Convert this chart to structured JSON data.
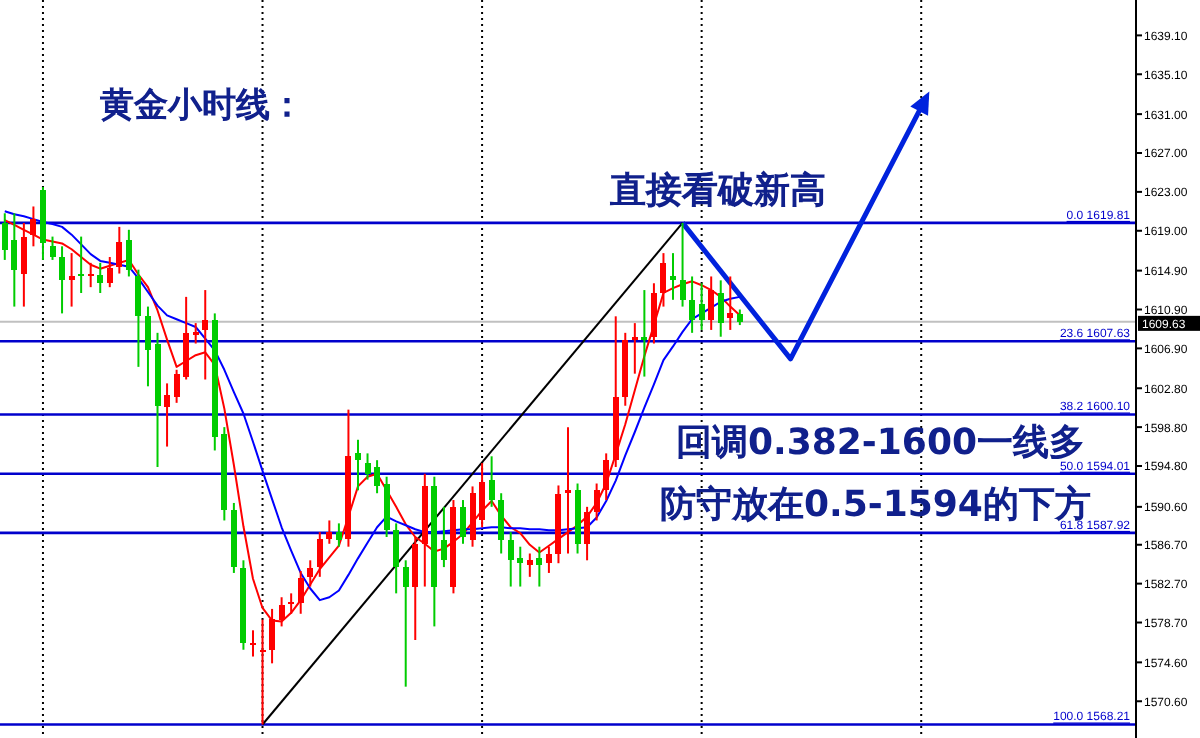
{
  "chart_data": {
    "type": "candlestick",
    "title": "黄金小时线：",
    "annotations": [
      "直接看破新高",
      "回调0.382-1600一线多",
      "防守放在0.5-1594的下方"
    ],
    "categories": [
      null,
      null,
      null,
      null,
      null,
      null,
      null,
      null,
      null,
      null,
      null,
      null,
      null,
      null,
      null,
      null,
      null,
      null,
      null,
      null,
      null,
      null,
      null,
      null,
      null,
      null,
      null,
      null,
      null,
      null,
      null,
      null,
      null,
      null,
      null,
      null,
      null,
      null,
      null,
      null,
      null,
      null,
      null,
      null,
      null,
      null,
      null,
      null,
      null,
      null,
      null,
      null,
      null,
      null,
      null,
      null,
      null,
      null,
      null,
      null,
      null,
      null,
      null,
      null,
      null,
      null,
      null,
      null,
      null,
      null,
      null,
      null,
      null,
      null,
      null,
      null,
      null,
      null,
      null,
      null,
      null,
      null,
      null,
      null,
      null,
      null,
      null,
      null,
      null,
      null,
      null,
      null,
      null,
      null,
      null,
      null,
      null,
      null,
      null,
      null,
      null,
      null,
      null,
      null,
      null,
      null,
      null,
      null,
      null,
      null,
      null,
      null,
      null,
      null,
      null,
      null,
      null,
      null,
      null
    ],
    "ohlc": [
      [
        1619.8,
        1620.8,
        1616.0,
        1617.0
      ],
      [
        1618.1,
        1620.8,
        1611.2,
        1615.0
      ],
      [
        1614.6,
        1619.8,
        1611.2,
        1618.4
      ],
      [
        1618.6,
        1621.5,
        1617.4,
        1620.2
      ],
      [
        1623.2,
        1623.5,
        1616.0,
        1617.7
      ],
      [
        1617.4,
        1618.4,
        1616.0,
        1616.3
      ],
      [
        1616.3,
        1617.4,
        1610.5,
        1613.9
      ],
      [
        1613.9,
        1616.7,
        1611.2,
        1614.3
      ],
      [
        1614.6,
        1618.4,
        1612.6,
        1614.3
      ],
      [
        1614.4,
        1615.7,
        1613.2,
        1614.6
      ],
      [
        1614.5,
        1615.7,
        1612.6,
        1613.6
      ],
      [
        1613.6,
        1616.3,
        1613.2,
        1615.2
      ],
      [
        1615.3,
        1619.4,
        1614.6,
        1617.8
      ],
      [
        1618.1,
        1619.1,
        1614.3,
        1615.0
      ],
      [
        1614.3,
        1615.0,
        1605.0,
        1610.2
      ],
      [
        1610.2,
        1611.2,
        1603.0,
        1606.7
      ],
      [
        1607.4,
        1608.5,
        1594.7,
        1601.0
      ],
      [
        1600.9,
        1603.3,
        1596.8,
        1602.1
      ],
      [
        1601.9,
        1604.7,
        1601.3,
        1604.3
      ],
      [
        1604.0,
        1612.2,
        1603.7,
        1608.5
      ],
      [
        1608.3,
        1609.5,
        1607.4,
        1608.6
      ],
      [
        1608.8,
        1612.9,
        1603.7,
        1609.8
      ],
      [
        1609.8,
        1610.5,
        1596.4,
        1597.8
      ],
      [
        1598.1,
        1598.8,
        1589.2,
        1590.3
      ],
      [
        1590.3,
        1591.0,
        1583.8,
        1584.4
      ],
      [
        1584.3,
        1585.1,
        1575.9,
        1576.6
      ],
      [
        1576.4,
        1577.9,
        1575.2,
        1576.6
      ],
      [
        1575.7,
        1579.0,
        1568.21,
        1575.9
      ],
      [
        1575.9,
        1580.1,
        1574.5,
        1579.1
      ],
      [
        1579.0,
        1581.3,
        1578.3,
        1580.5
      ],
      [
        1580.6,
        1581.7,
        1579.6,
        1580.8
      ],
      [
        1580.7,
        1584.0,
        1579.6,
        1583.3
      ],
      [
        1583.4,
        1585.1,
        1582.4,
        1584.3
      ],
      [
        1584.4,
        1588.0,
        1583.4,
        1587.3
      ],
      [
        1587.3,
        1589.2,
        1586.8,
        1588.0
      ],
      [
        1588.0,
        1588.9,
        1586.5,
        1587.2
      ],
      [
        1587.3,
        1600.6,
        1586.5,
        1595.8
      ],
      [
        1596.1,
        1597.5,
        1592.3,
        1595.4
      ],
      [
        1595.1,
        1596.1,
        1593.4,
        1594.0
      ],
      [
        1594.7,
        1595.4,
        1592.0,
        1592.7
      ],
      [
        1593.0,
        1593.7,
        1587.5,
        1588.2
      ],
      [
        1588.2,
        1588.9,
        1581.7,
        1584.4
      ],
      [
        1584.4,
        1585.1,
        1572.1,
        1582.4
      ],
      [
        1582.4,
        1587.5,
        1576.9,
        1586.8
      ],
      [
        1586.8,
        1594.0,
        1582.4,
        1592.7
      ],
      [
        1592.7,
        1593.7,
        1578.3,
        1582.4
      ],
      [
        1587.2,
        1590.6,
        1584.4,
        1585.1
      ],
      [
        1582.4,
        1591.3,
        1581.7,
        1590.6
      ],
      [
        1590.6,
        1591.3,
        1586.8,
        1587.5
      ],
      [
        1587.2,
        1592.7,
        1586.5,
        1592.0
      ],
      [
        1589.2,
        1595.1,
        1588.5,
        1593.2
      ],
      [
        1593.4,
        1595.8,
        1590.6,
        1591.3
      ],
      [
        1591.3,
        1592.0,
        1585.8,
        1587.2
      ],
      [
        1587.2,
        1588.0,
        1582.4,
        1585.1
      ],
      [
        1585.3,
        1586.5,
        1582.4,
        1584.8
      ],
      [
        1584.6,
        1585.8,
        1583.4,
        1585.1
      ],
      [
        1585.3,
        1586.5,
        1582.4,
        1584.6
      ],
      [
        1584.8,
        1586.5,
        1583.8,
        1585.8
      ],
      [
        1585.8,
        1592.8,
        1584.8,
        1591.9
      ],
      [
        1592.0,
        1598.8,
        1585.8,
        1592.3
      ],
      [
        1592.3,
        1593.0,
        1585.8,
        1586.8
      ],
      [
        1586.8,
        1590.6,
        1585.1,
        1590.1
      ],
      [
        1590.1,
        1593.0,
        1589.2,
        1592.3
      ],
      [
        1592.3,
        1596.1,
        1591.3,
        1595.4
      ],
      [
        1595.4,
        1610.2,
        1594.7,
        1601.9
      ],
      [
        1601.9,
        1608.5,
        1601.0,
        1607.8
      ],
      [
        1607.8,
        1609.5,
        1604.3,
        1608.1
      ],
      [
        1608.1,
        1612.9,
        1604.0,
        1607.8
      ],
      [
        1608.1,
        1613.6,
        1607.4,
        1612.6
      ],
      [
        1612.6,
        1616.7,
        1611.2,
        1615.7
      ],
      [
        1614.3,
        1616.7,
        1611.9,
        1613.9
      ],
      [
        1613.9,
        1619.81,
        1611.2,
        1611.9
      ],
      [
        1611.9,
        1614.3,
        1608.5,
        1609.8
      ],
      [
        1611.5,
        1613.6,
        1608.8,
        1609.8
      ],
      [
        1609.8,
        1614.3,
        1608.8,
        1612.9
      ],
      [
        1612.6,
        1613.9,
        1608.1,
        1609.5
      ],
      [
        1610.0,
        1614.3,
        1608.8,
        1610.5
      ],
      [
        1610.4,
        1610.9,
        1609.3,
        1609.63
      ],
      null,
      null,
      null,
      null,
      null,
      null,
      null,
      null,
      null,
      null,
      null,
      null,
      null,
      null,
      null,
      null,
      null,
      null,
      null,
      null,
      null,
      null,
      null,
      null,
      null,
      null,
      null,
      null,
      null,
      null,
      null,
      null,
      null,
      null,
      null,
      null,
      null,
      null,
      null,
      null,
      null
    ],
    "colors": [
      "#00cc00",
      "#00cc00",
      "#ff0000",
      "#ff0000",
      "#00cc00",
      "#00cc00",
      "#00cc00",
      "#ff0000",
      "#00cc00",
      "#ff0000",
      "#00cc00",
      "#ff0000",
      "#ff0000",
      "#00cc00",
      "#00cc00",
      "#00cc00",
      "#00cc00",
      "#ff0000",
      "#ff0000",
      "#ff0000",
      "#ff0000",
      "#ff0000",
      "#00cc00",
      "#00cc00",
      "#00cc00",
      "#00cc00",
      "#ff0000",
      "#ff0000",
      "#ff0000",
      "#ff0000",
      "#ff0000",
      "#ff0000",
      "#ff0000",
      "#ff0000",
      "#ff0000",
      "#00cc00",
      "#ff0000",
      "#00cc00",
      "#00cc00",
      "#00cc00",
      "#00cc00",
      "#00cc00",
      "#00cc00",
      "#ff0000",
      "#ff0000",
      "#00cc00",
      "#00cc00",
      "#ff0000",
      "#00cc00",
      "#ff0000",
      "#ff0000",
      "#00cc00",
      "#00cc00",
      "#00cc00",
      "#00cc00",
      "#ff0000",
      "#00cc00",
      "#ff0000",
      "#ff0000",
      "#ff0000",
      "#00cc00",
      "#ff0000",
      "#ff0000",
      "#ff0000",
      "#ff0000",
      "#ff0000",
      "#ff0000",
      "#00cc00",
      "#ff0000",
      "#ff0000",
      "#00cc00",
      "#00cc00",
      "#00cc00",
      "#00cc00",
      "#ff0000",
      "#00cc00",
      "#ff0000",
      "#00cc00",
      null,
      null,
      null,
      null,
      null,
      null,
      null,
      null,
      null,
      null,
      null,
      null,
      null,
      null,
      null,
      null,
      null,
      null,
      null,
      null,
      null,
      null,
      null,
      null,
      null,
      null,
      null,
      null,
      null,
      null,
      null,
      null,
      null,
      null,
      null,
      null,
      null,
      null,
      null,
      null,
      null
    ],
    "series": [
      {
        "type": "line",
        "color": "#ff0000",
        "values": [
          1620.1,
          1619.6,
          1619.1,
          1618.6,
          1618.1,
          1617.9,
          1617.7,
          1617.1,
          1616.3,
          1615.5,
          1615.1,
          1615.4,
          1615.7,
          1616.0,
          1614.5,
          1613.2,
          1610.8,
          1607.8,
          1605.0,
          1605.6,
          1606.2,
          1606.5,
          1605.2,
          1600.7,
          1594.9,
          1588.6,
          1583.2,
          1580.2,
          1578.9,
          1578.8,
          1579.7,
          1581.0,
          1582.6,
          1584.2,
          1585.4,
          1586.6,
          1589.6,
          1592.7,
          1593.7,
          1594.0,
          1592.3,
          1590.6,
          1588.8,
          1587.5,
          1586.8,
          1586.0,
          1586.3,
          1587.0,
          1587.8,
          1589.0,
          1590.2,
          1591.2,
          1589.7,
          1588.5,
          1587.9,
          1586.7,
          1585.9,
          1586.6,
          1587.3,
          1588.0,
          1588.7,
          1589.6,
          1591.0,
          1593.0,
          1596.0,
          1599.1,
          1602.6,
          1606.1,
          1609.3,
          1612.6,
          1613.1,
          1613.5,
          1613.8,
          1613.4,
          1612.9,
          1612.2,
          1611.2,
          1610.3,
          null,
          null,
          null,
          null,
          null,
          null,
          null,
          null,
          null,
          null,
          null,
          null,
          null,
          null,
          null,
          null,
          null,
          null,
          null,
          null,
          null,
          null,
          null,
          null,
          null,
          null,
          null,
          null,
          null,
          null,
          null,
          null,
          null,
          null,
          null,
          null,
          null,
          null,
          null,
          null,
          null
        ]
      },
      {
        "type": "line",
        "color": "#0000ff",
        "values": [
          1621.0,
          1620.7,
          1620.5,
          1620.2,
          1619.9,
          1619.7,
          1619.4,
          1618.6,
          1617.6,
          1616.6,
          1615.9,
          1615.7,
          1615.5,
          1615.3,
          1614.1,
          1612.7,
          1611.3,
          1610.3,
          1609.9,
          1609.5,
          1609.1,
          1607.9,
          1606.7,
          1604.7,
          1602.4,
          1600.2,
          1597.3,
          1594.3,
          1591.4,
          1588.5,
          1586.1,
          1583.8,
          1582.2,
          1581.0,
          1581.3,
          1582.0,
          1583.6,
          1585.3,
          1586.9,
          1588.5,
          1589.6,
          1589.1,
          1588.7,
          1588.3,
          1588.0,
          1588.0,
          1588.1,
          1588.2,
          1588.3,
          1588.3,
          1588.4,
          1588.5,
          1588.5,
          1588.4,
          1588.4,
          1588.3,
          1588.3,
          1588.2,
          1588.2,
          1588.3,
          1588.4,
          1588.5,
          1589.5,
          1591.2,
          1593.3,
          1595.9,
          1598.3,
          1600.8,
          1603.2,
          1605.7,
          1607.1,
          1608.6,
          1609.9,
          1610.5,
          1611.1,
          1611.7,
          1612.0,
          1612.2,
          null,
          null,
          null,
          null,
          null,
          null,
          null,
          null,
          null,
          null,
          null,
          null,
          null,
          null,
          null,
          null,
          null,
          null,
          null,
          null,
          null,
          null,
          null,
          null,
          null,
          null,
          null,
          null,
          null,
          null,
          null,
          null,
          null,
          null,
          null,
          null,
          null,
          null,
          null,
          null,
          null
        ]
      }
    ],
    "ref_lines": [
      {
        "axis": "y",
        "value": 1619.81,
        "label": "0.0 1619.81",
        "color": "#0000cc"
      },
      {
        "axis": "y",
        "value": 1607.63,
        "label": "23.6 1607.63",
        "color": "#0000cc"
      },
      {
        "axis": "y",
        "value": 1600.1,
        "label": "38.2 1600.10",
        "color": "#0000cc"
      },
      {
        "axis": "y",
        "value": 1594.01,
        "label": "50.0 1594.01",
        "color": "#0000cc"
      },
      {
        "axis": "y",
        "value": 1587.92,
        "label": "61.8 1587.92",
        "color": "#0000cc"
      },
      {
        "axis": "y",
        "value": 1568.21,
        "label": "100.0 1568.21",
        "color": "#0000cc"
      },
      {
        "axis": "y",
        "value": 1609.63,
        "label": "1609.63",
        "color": "#c0c0c0"
      }
    ],
    "ylim": [
      1566.82,
      1642.74
    ],
    "yticks": [
      {
        "value": 1639.1,
        "label": "1639.10"
      },
      {
        "value": 1635.1,
        "label": "1635.10"
      },
      {
        "value": 1631,
        "label": "1631.00"
      },
      {
        "value": 1627,
        "label": "1627.00"
      },
      {
        "value": 1623,
        "label": "1623.00"
      },
      {
        "value": 1619,
        "label": "1619.00"
      },
      {
        "value": 1614.9,
        "label": "1614.90"
      },
      {
        "value": 1610.9,
        "label": "1610.90"
      },
      {
        "value": 1606.9,
        "label": "1606.90"
      },
      {
        "value": 1602.8,
        "label": "1602.80"
      },
      {
        "value": 1598.8,
        "label": "1598.80"
      },
      {
        "value": 1594.8,
        "label": "1594.80"
      },
      {
        "value": 1590.6,
        "label": "1590.60"
      },
      {
        "value": 1586.7,
        "label": "1586.70"
      },
      {
        "value": 1582.7,
        "label": "1582.70"
      },
      {
        "value": 1578.7,
        "label": "1578.70"
      },
      {
        "value": 1574.6,
        "label": "1574.60"
      },
      {
        "value": 1570.6,
        "label": "1570.60"
      }
    ],
    "tick_labels": "y",
    "grid": "x"
  }
}
